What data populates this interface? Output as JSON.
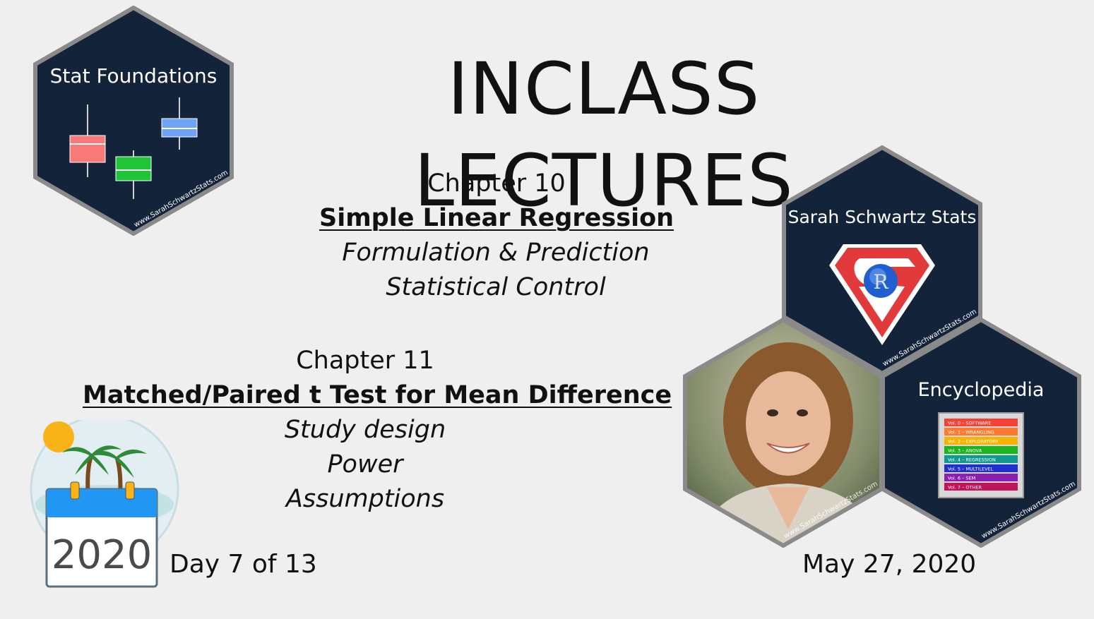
{
  "title": "INCLASS LECTURES",
  "chapter10": {
    "heading": "Chapter 10",
    "topic": "Simple Linear Regression",
    "subtopics": [
      "Formulation & Prediction",
      "Statistical Control"
    ]
  },
  "chapter11": {
    "heading": "Chapter 11",
    "topic": "Matched/Paired t Test for Mean Difference",
    "subtopics": [
      "Study design",
      "Power",
      "Assumptions"
    ]
  },
  "day": "Day 7 of 13",
  "date": "May 27, 2020",
  "calendar": {
    "year": "2020",
    "icon": "calendar-palm-tree-icon"
  },
  "logos": {
    "stat_foundations": {
      "title": "Stat Foundations",
      "url": "www.SarahSchwartzStats.com"
    },
    "sarah_schwartz_stats": {
      "title": "Sarah Schwartz Stats",
      "badge_letter": "R",
      "url": "www.SarahSchwartzStats.com"
    },
    "photo": {
      "url": "www.SarahSchwartzStats.com"
    },
    "encyclopedia": {
      "title": "Encyclopedia",
      "url": "www.SarahSchwartzStats.com",
      "volumes": [
        {
          "label": "Vol. 0 – SOFTWARE",
          "color": "#f44336"
        },
        {
          "label": "Vol. 1 – WRANGLING",
          "color": "#ff7a2e"
        },
        {
          "label": "Vol. 2 – EXPLORATORY",
          "color": "#f5b400"
        },
        {
          "label": "Vol. 3 – ANOVA",
          "color": "#1db41d"
        },
        {
          "label": "Vol. 4 – REGRESSION",
          "color": "#0f9a8f"
        },
        {
          "label": "Vol. 5 – MULTILEVEL",
          "color": "#2030d0"
        },
        {
          "label": "Vol. 6 – SEM",
          "color": "#8a1fb0"
        },
        {
          "label": "Vol. 7 – OTHER",
          "color": "#c0145a"
        }
      ]
    }
  },
  "colors": {
    "hex_fill": "#13233a",
    "hex_border": "#8a8a8a",
    "box_red": "#f87a78",
    "box_green": "#1fc437",
    "box_blue": "#6fa3f5"
  }
}
